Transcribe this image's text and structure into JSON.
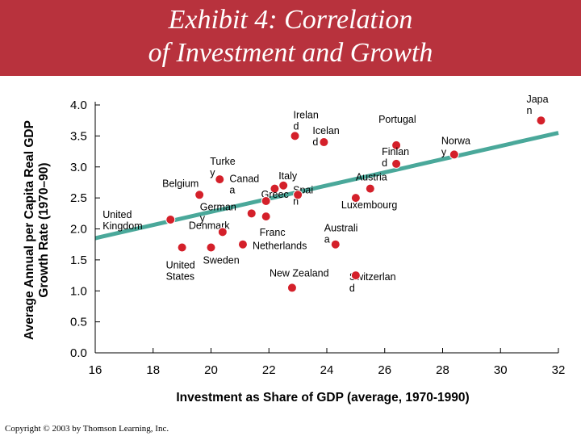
{
  "header": {
    "title_line1": "Exhibit 4: Correlation",
    "title_line2": "of Investment and Growth",
    "color": "#b8323d"
  },
  "footer": {
    "copyright": "Copyright © 2003 by Thomson Learning, Inc."
  },
  "chart_data": {
    "type": "scatter",
    "title": "Exhibit 4: Correlation of Investment and Growth",
    "xlabel": "Investment as Share of GDP (average, 1970-1990)",
    "ylabel_line1": "Average Annual per Capita Real GDP",
    "ylabel_line2": "Growth Rate (1970–90)",
    "xlim": [
      16,
      32
    ],
    "ylim": [
      0.0,
      4.0
    ],
    "x_ticks": [
      "16",
      "18",
      "20",
      "22",
      "24",
      "26",
      "28",
      "30",
      "32"
    ],
    "y_ticks": [
      "0.0",
      "0.5",
      "1.0",
      "1.5",
      "2.0",
      "2.5",
      "3.0",
      "3.5",
      "4.0"
    ],
    "grid": false,
    "marker_color": "#d4202a",
    "trendline": {
      "x": [
        16,
        32
      ],
      "y": [
        1.85,
        3.55
      ],
      "color": "#4aa89a"
    },
    "points": [
      {
        "label": [
          "Irelan",
          "d"
        ],
        "x": 22.9,
        "y": 3.5
      },
      {
        "label": [
          "Icelan",
          "d"
        ],
        "x": 23.9,
        "y": 3.4
      },
      {
        "label": [
          "Portugal"
        ],
        "x": 26.4,
        "y": 3.35
      },
      {
        "label": [
          "Japa",
          "n"
        ],
        "x": 31.4,
        "y": 3.75
      },
      {
        "label": [
          "Norwa",
          "y"
        ],
        "x": 28.4,
        "y": 3.2
      },
      {
        "label": [
          "Finlan",
          "d"
        ],
        "x": 26.4,
        "y": 3.05
      },
      {
        "label": [
          "Turke",
          "y"
        ],
        "x": 20.3,
        "y": 2.8
      },
      {
        "label": [
          "Belgium"
        ],
        "x": 19.6,
        "y": 2.55
      },
      {
        "label": [
          "Canad",
          "a"
        ],
        "x": 22.2,
        "y": 2.65
      },
      {
        "label": [
          "Italy"
        ],
        "x": 22.5,
        "y": 2.7
      },
      {
        "label": [
          "Spai",
          "n"
        ],
        "x": 23.0,
        "y": 2.55
      },
      {
        "label": [
          "Greec"
        ],
        "x": 21.9,
        "y": 2.45
      },
      {
        "label": [
          "German",
          "y"
        ],
        "x": 21.4,
        "y": 2.25
      },
      {
        "label": [
          "Austria"
        ],
        "x": 25.5,
        "y": 2.65
      },
      {
        "label": [
          "Luxembourg"
        ],
        "x": 25.0,
        "y": 2.5
      },
      {
        "label": [
          "United",
          "Kingdom"
        ],
        "x": 18.6,
        "y": 2.15
      },
      {
        "label": [
          "Franc"
        ],
        "x": 21.9,
        "y": 2.2
      },
      {
        "label": [
          "Denmark"
        ],
        "x": 20.4,
        "y": 1.95
      },
      {
        "label": [
          "Netherlands"
        ],
        "x": 21.1,
        "y": 1.75
      },
      {
        "label": [
          "Australi",
          "a"
        ],
        "x": 24.3,
        "y": 1.75
      },
      {
        "label": [
          "Sweden"
        ],
        "x": 20.0,
        "y": 1.7
      },
      {
        "label": [
          "United",
          "States"
        ],
        "x": 19.0,
        "y": 1.7
      },
      {
        "label": [
          "Switzerlan",
          "d"
        ],
        "x": 25.0,
        "y": 1.25
      },
      {
        "label": [
          "New Zealand"
        ],
        "x": 22.8,
        "y": 1.05
      }
    ]
  }
}
